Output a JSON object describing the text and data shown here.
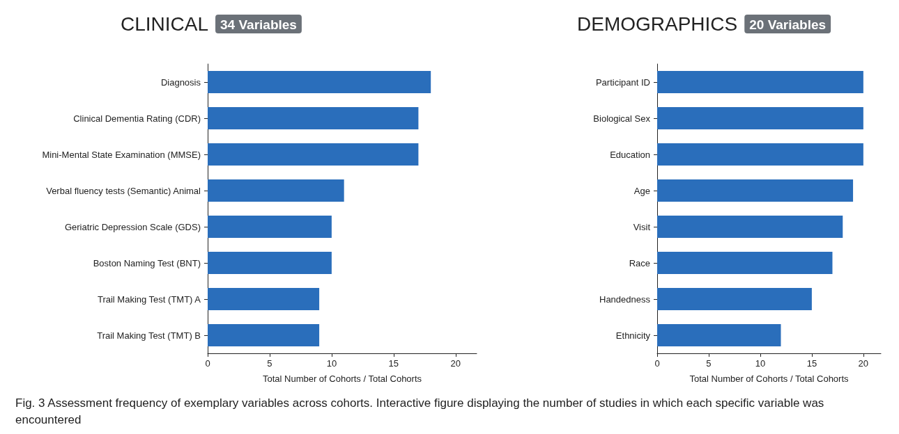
{
  "chart_data": [
    {
      "type": "bar",
      "orientation": "horizontal",
      "title": "CLINICAL",
      "subtitle": "34 Variables",
      "xlabel": "Total Number of Cohorts / Total Cohorts",
      "categories": [
        "Diagnosis",
        "Clinical Dementia Rating (CDR)",
        "Mini-Mental State Examination (MMSE)",
        "Verbal fluency tests (Semantic) Animal",
        "Geriatric Depression Scale (GDS)",
        "Boston Naming Test (BNT)",
        "Trail Making Test (TMT) A",
        "Trail Making Test (TMT) B"
      ],
      "values": [
        18,
        17,
        17,
        11,
        10,
        10,
        9,
        9
      ],
      "color": "#2a6ebb",
      "xlim": [
        0,
        21.7
      ],
      "xticks": [
        0,
        5,
        10,
        15,
        20
      ],
      "grid": false
    },
    {
      "type": "bar",
      "orientation": "horizontal",
      "title": "DEMOGRAPHICS",
      "subtitle": "20 Variables",
      "xlabel": "Total Number of Cohorts / Total Cohorts",
      "categories": [
        "Participant ID",
        "Biological Sex",
        "Education",
        "Age",
        "Visit",
        "Race",
        "Handedness",
        "Ethnicity"
      ],
      "values": [
        20,
        20,
        20,
        19,
        18,
        17,
        15,
        12
      ],
      "color": "#2a6ebb",
      "xlim": [
        0,
        21.7
      ],
      "xticks": [
        0,
        5,
        10,
        15,
        20
      ],
      "grid": false,
      "annotations": [
        "Fig. 3 Assessment frequency of exemplary variables across cohorts. Interactive figure displaying the number of studies in which each specific variable was encountered"
      ]
    }
  ]
}
